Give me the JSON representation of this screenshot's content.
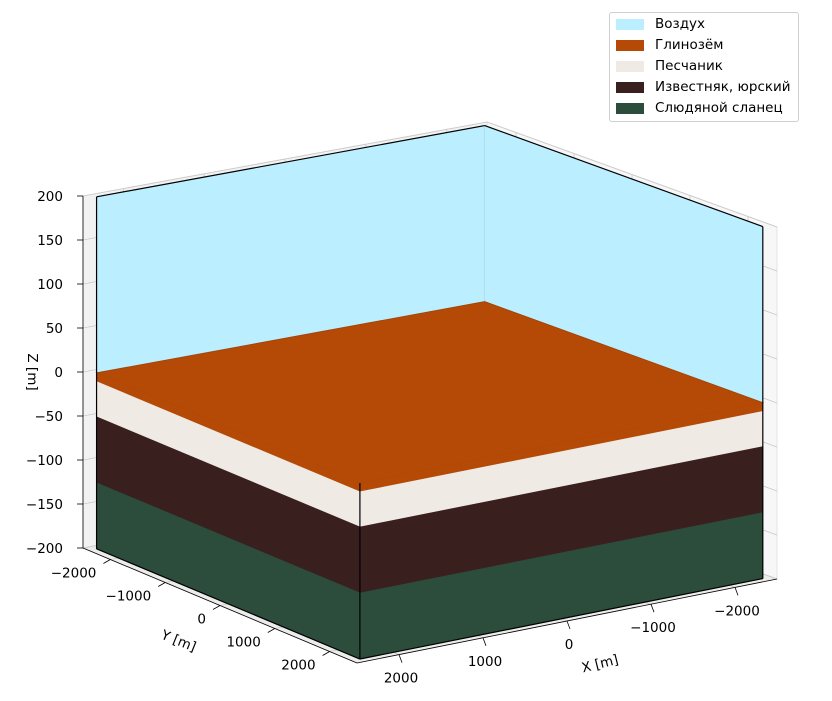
{
  "chart_data": {
    "type": "3d-block",
    "xlabel": "X [m]",
    "ylabel": "Y [m]",
    "zlabel": "Z [m]",
    "xlim": [
      -2500,
      2500
    ],
    "ylim": [
      -2500,
      2500
    ],
    "zlim": [
      -200,
      200
    ],
    "x_ticks": [
      {
        "value": -2000,
        "label": "−2000"
      },
      {
        "value": -1000,
        "label": "−1000"
      },
      {
        "value": 0,
        "label": "0"
      },
      {
        "value": 1000,
        "label": "1000"
      },
      {
        "value": 2000,
        "label": "2000"
      }
    ],
    "y_ticks": [
      {
        "value": -2000,
        "label": "−2000"
      },
      {
        "value": -1000,
        "label": "−1000"
      },
      {
        "value": 0,
        "label": "0"
      },
      {
        "value": 1000,
        "label": "1000"
      },
      {
        "value": 2000,
        "label": "2000"
      }
    ],
    "z_ticks": [
      {
        "value": 200,
        "label": "200"
      },
      {
        "value": 150,
        "label": "150"
      },
      {
        "value": 100,
        "label": "100"
      },
      {
        "value": 50,
        "label": "50"
      },
      {
        "value": 0,
        "label": "0"
      },
      {
        "value": -50,
        "label": "−50"
      },
      {
        "value": -100,
        "label": "−100"
      },
      {
        "value": -150,
        "label": "−150"
      },
      {
        "value": -200,
        "label": "−200"
      }
    ],
    "layers": [
      {
        "name": "Воздух",
        "color": "#bbeeff",
        "top": 200,
        "bottom": 0
      },
      {
        "name": "Глинозём",
        "color": "#b54a06",
        "top": 0,
        "bottom": -10
      },
      {
        "name": "Песчаник",
        "color": "#efebe4",
        "top": -10,
        "bottom": -50
      },
      {
        "name": "Известняк, юрский",
        "color": "#3a1f1f",
        "top": -50,
        "bottom": -125
      },
      {
        "name": "Слюдяной сланец",
        "color": "#2c4d3c",
        "top": -125,
        "bottom": -200
      }
    ],
    "grid": true,
    "legend_position": "top-right"
  }
}
